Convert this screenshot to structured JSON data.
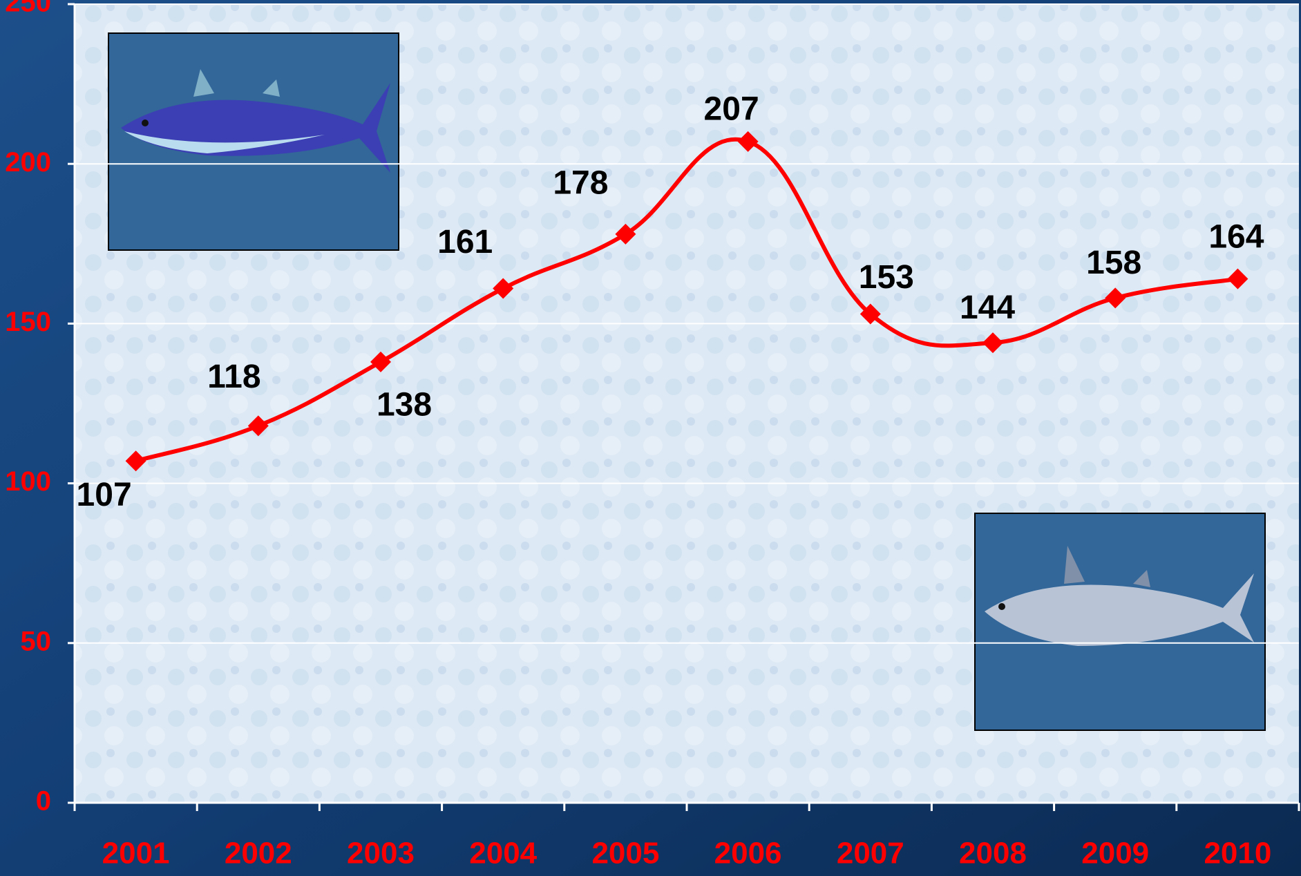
{
  "chart_data": {
    "type": "line",
    "categories": [
      "2001",
      "2002",
      "2003",
      "2004",
      "2005",
      "2006",
      "2007",
      "2008",
      "2009",
      "2010"
    ],
    "values": [
      107,
      118,
      138,
      161,
      178,
      207,
      153,
      144,
      158,
      164
    ],
    "color": "#ff0000",
    "ylim": [
      0,
      250
    ],
    "yticks": [
      0,
      50,
      100,
      150,
      200,
      250
    ],
    "grid": true
  }
}
